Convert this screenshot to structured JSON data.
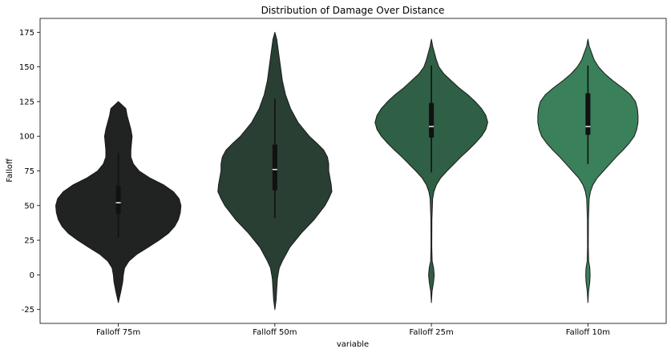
{
  "chart_data": {
    "type": "violin",
    "title": "Distribution of Damage Over Distance",
    "xlabel": "variable",
    "ylabel": "Falloff",
    "ylim": [
      -35,
      185
    ],
    "yticks": [
      -25,
      0,
      25,
      50,
      75,
      100,
      125,
      150,
      175
    ],
    "categories": [
      "Falloff 75m",
      "Falloff 50m",
      "Falloff 25m",
      "Falloff 10m"
    ],
    "colors": [
      "#212322",
      "#293f33",
      "#2f5f45",
      "#3a805a"
    ],
    "series": [
      {
        "name": "Falloff 75m",
        "range": [
          -20,
          125
        ],
        "box": {
          "whisker_low": 27,
          "q1": 44,
          "median": 52,
          "q3": 64,
          "whisker_high": 88
        },
        "density": [
          [
            -20,
            0
          ],
          [
            -12,
            0.04
          ],
          [
            -5,
            0.07
          ],
          [
            0,
            0.08
          ],
          [
            5,
            0.1
          ],
          [
            10,
            0.17
          ],
          [
            15,
            0.3
          ],
          [
            20,
            0.48
          ],
          [
            25,
            0.65
          ],
          [
            30,
            0.8
          ],
          [
            35,
            0.9
          ],
          [
            40,
            0.96
          ],
          [
            45,
            0.99
          ],
          [
            50,
            1.0
          ],
          [
            55,
            0.97
          ],
          [
            60,
            0.88
          ],
          [
            65,
            0.72
          ],
          [
            70,
            0.5
          ],
          [
            75,
            0.33
          ],
          [
            80,
            0.24
          ],
          [
            85,
            0.2
          ],
          [
            90,
            0.2
          ],
          [
            95,
            0.21
          ],
          [
            100,
            0.22
          ],
          [
            105,
            0.2
          ],
          [
            110,
            0.17
          ],
          [
            115,
            0.14
          ],
          [
            120,
            0.12
          ],
          [
            125,
            0
          ]
        ]
      },
      {
        "name": "Falloff 50m",
        "range": [
          -25,
          175
        ],
        "box": {
          "whisker_low": 41,
          "q1": 61,
          "median": 76,
          "q3": 94,
          "whisker_high": 127
        },
        "density": [
          [
            -25,
            0
          ],
          [
            -18,
            0.02
          ],
          [
            -10,
            0.03
          ],
          [
            -3,
            0.04
          ],
          [
            0,
            0.05
          ],
          [
            5,
            0.07
          ],
          [
            10,
            0.12
          ],
          [
            20,
            0.24
          ],
          [
            30,
            0.42
          ],
          [
            40,
            0.63
          ],
          [
            50,
            0.8
          ],
          [
            55,
            0.86
          ],
          [
            60,
            0.91
          ],
          [
            65,
            0.9
          ],
          [
            70,
            0.88
          ],
          [
            75,
            0.86
          ],
          [
            80,
            0.86
          ],
          [
            85,
            0.84
          ],
          [
            90,
            0.78
          ],
          [
            95,
            0.67
          ],
          [
            100,
            0.55
          ],
          [
            110,
            0.37
          ],
          [
            120,
            0.25
          ],
          [
            130,
            0.17
          ],
          [
            140,
            0.12
          ],
          [
            150,
            0.09
          ],
          [
            160,
            0.06
          ],
          [
            170,
            0.03
          ],
          [
            175,
            0
          ]
        ]
      },
      {
        "name": "Falloff 25m",
        "range": [
          -20,
          170
        ],
        "box": {
          "whisker_low": 74,
          "q1": 99,
          "median": 107,
          "q3": 124,
          "whisker_high": 151
        },
        "density": [
          [
            -20,
            0
          ],
          [
            -12,
            0.01
          ],
          [
            -5,
            0.035
          ],
          [
            0,
            0.045
          ],
          [
            5,
            0.035
          ],
          [
            10,
            0.012
          ],
          [
            20,
            0.006
          ],
          [
            40,
            0.008
          ],
          [
            55,
            0.02
          ],
          [
            60,
            0.04
          ],
          [
            65,
            0.08
          ],
          [
            70,
            0.15
          ],
          [
            75,
            0.25
          ],
          [
            80,
            0.36
          ],
          [
            85,
            0.47
          ],
          [
            90,
            0.59
          ],
          [
            95,
            0.7
          ],
          [
            100,
            0.8
          ],
          [
            105,
            0.87
          ],
          [
            110,
            0.9
          ],
          [
            115,
            0.87
          ],
          [
            120,
            0.8
          ],
          [
            125,
            0.7
          ],
          [
            130,
            0.58
          ],
          [
            135,
            0.44
          ],
          [
            140,
            0.32
          ],
          [
            145,
            0.2
          ],
          [
            150,
            0.12
          ],
          [
            155,
            0.08
          ],
          [
            160,
            0.05
          ],
          [
            165,
            0.02
          ],
          [
            170,
            0
          ]
        ]
      },
      {
        "name": "Falloff 10m",
        "range": [
          -20,
          170
        ],
        "box": {
          "whisker_low": 80,
          "q1": 101,
          "median": 107,
          "q3": 131,
          "whisker_high": 151
        },
        "density": [
          [
            -20,
            0
          ],
          [
            -12,
            0.01
          ],
          [
            -5,
            0.03
          ],
          [
            0,
            0.035
          ],
          [
            5,
            0.03
          ],
          [
            10,
            0.012
          ],
          [
            20,
            0.006
          ],
          [
            40,
            0.008
          ],
          [
            55,
            0.02
          ],
          [
            60,
            0.04
          ],
          [
            65,
            0.08
          ],
          [
            70,
            0.15
          ],
          [
            75,
            0.25
          ],
          [
            80,
            0.35
          ],
          [
            85,
            0.45
          ],
          [
            90,
            0.56
          ],
          [
            95,
            0.66
          ],
          [
            100,
            0.74
          ],
          [
            105,
            0.78
          ],
          [
            110,
            0.8
          ],
          [
            115,
            0.8
          ],
          [
            120,
            0.79
          ],
          [
            125,
            0.76
          ],
          [
            130,
            0.68
          ],
          [
            135,
            0.55
          ],
          [
            140,
            0.4
          ],
          [
            145,
            0.27
          ],
          [
            150,
            0.17
          ],
          [
            155,
            0.1
          ],
          [
            160,
            0.06
          ],
          [
            165,
            0.02
          ],
          [
            170,
            0
          ]
        ]
      }
    ]
  }
}
